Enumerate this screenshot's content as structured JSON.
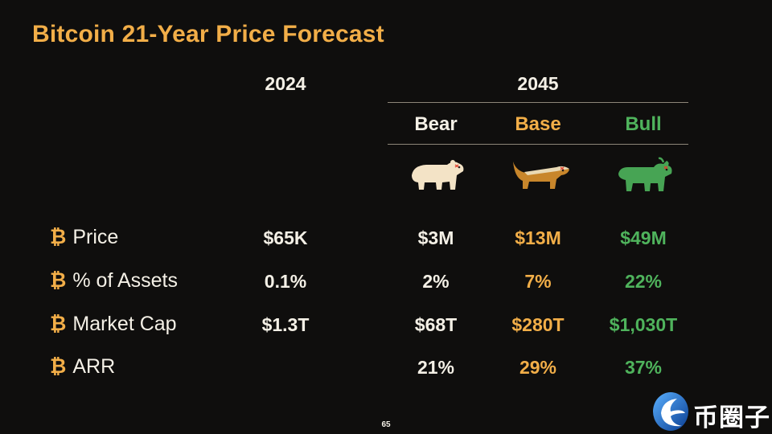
{
  "title": "Bitcoin 21-Year Price Forecast",
  "years": {
    "current": "2024",
    "future": "2045"
  },
  "scenarios": [
    {
      "key": "bear",
      "label": "Bear",
      "color": "#f4f0e6",
      "icon": "bear-icon"
    },
    {
      "key": "base",
      "label": "Base",
      "color": "#f2ae48",
      "icon": "honey-badger-icon"
    },
    {
      "key": "bull",
      "label": "Bull",
      "color": "#4fb35c",
      "icon": "bull-icon"
    }
  ],
  "row_marker": "₿",
  "rows": [
    {
      "label": "Price",
      "y2024": "$65K",
      "bear": "$3M",
      "base": "$13M",
      "bull": "$49M"
    },
    {
      "label": "% of Assets",
      "y2024": "0.1%",
      "bear": "2%",
      "base": "7%",
      "bull": "22%"
    },
    {
      "label": "Market Cap",
      "y2024": "$1.3T",
      "bear": "$68T",
      "base": "$280T",
      "bull": "$1,030T"
    },
    {
      "label": "ARR",
      "y2024": "",
      "bear": "21%",
      "base": "29%",
      "bull": "37%"
    }
  ],
  "page_number": "65",
  "watermark": {
    "text": "币圈子"
  },
  "colors": {
    "accent": "#f2ae48",
    "bull": "#4fb35c",
    "text": "#f4f0e6",
    "background": "#0f0e0d"
  }
}
